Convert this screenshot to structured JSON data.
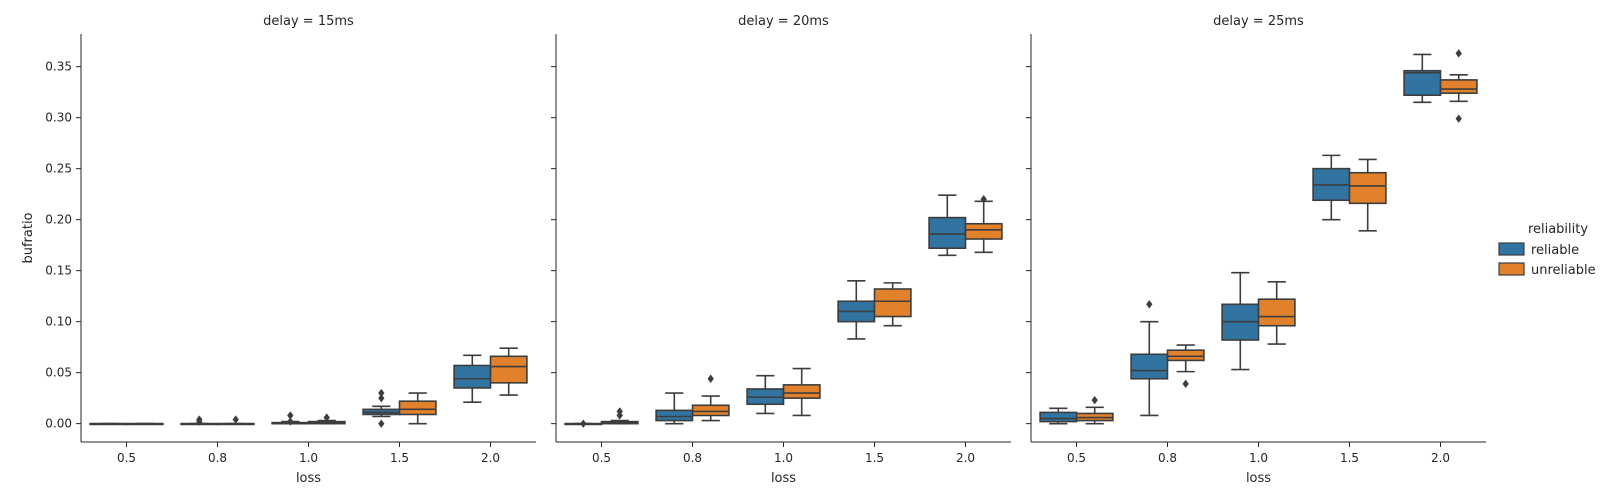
{
  "chart_data": {
    "type": "box",
    "colors": {
      "reliable": "#3274a1",
      "unreliable": "#e1812c",
      "line": "#3d3d3d"
    },
    "categories": [
      "0.5",
      "0.8",
      "1.0",
      "1.5",
      "2.0"
    ],
    "xlabel": "loss",
    "ylabel": "bufratio",
    "ylim": [
      -0.018,
      0.382
    ],
    "yticks": [
      "0.00",
      "0.05",
      "0.10",
      "0.15",
      "0.20",
      "0.25",
      "0.30",
      "0.35"
    ],
    "legend": {
      "title": "reliability",
      "position": "right",
      "entries": [
        "reliable",
        "unreliable"
      ]
    },
    "facets": [
      {
        "title": "delay = 15ms",
        "series": [
          {
            "name": "reliable",
            "boxes": [
              {
                "lo": 0.0,
                "q1": 0.0,
                "med": 0.0,
                "q3": 0.0,
                "hi": 0.0,
                "out": []
              },
              {
                "lo": 0.0,
                "q1": 0.0,
                "med": 0.0,
                "q3": 0.0,
                "hi": 0.0,
                "out": [
                  0.004,
                  0.002
                ]
              },
              {
                "lo": 0.0,
                "q1": 0.0,
                "med": 0.0,
                "q3": 0.001,
                "hi": 0.002,
                "out": [
                  0.008,
                  0.002
                ]
              },
              {
                "lo": 0.007,
                "q1": 0.009,
                "med": 0.011,
                "q3": 0.014,
                "hi": 0.017,
                "out": [
                  0.03,
                  0.025,
                  0.0
                ]
              },
              {
                "lo": 0.021,
                "q1": 0.035,
                "med": 0.044,
                "q3": 0.057,
                "hi": 0.067,
                "out": []
              }
            ]
          },
          {
            "name": "unreliable",
            "boxes": [
              {
                "lo": 0.0,
                "q1": 0.0,
                "med": 0.0,
                "q3": 0.0,
                "hi": 0.0,
                "out": []
              },
              {
                "lo": 0.0,
                "q1": 0.0,
                "med": 0.0,
                "q3": 0.0,
                "hi": 0.0,
                "out": [
                  0.004
                ]
              },
              {
                "lo": 0.0,
                "q1": 0.0,
                "med": 0.001,
                "q3": 0.002,
                "hi": 0.003,
                "out": [
                  0.006
                ]
              },
              {
                "lo": 0.0,
                "q1": 0.009,
                "med": 0.014,
                "q3": 0.022,
                "hi": 0.03,
                "out": []
              },
              {
                "lo": 0.028,
                "q1": 0.04,
                "med": 0.056,
                "q3": 0.066,
                "hi": 0.074,
                "out": []
              }
            ]
          }
        ]
      },
      {
        "title": "delay = 20ms",
        "series": [
          {
            "name": "reliable",
            "boxes": [
              {
                "lo": 0.0,
                "q1": 0.0,
                "med": 0.0,
                "q3": 0.0,
                "hi": 0.0,
                "out": [
                  0.0
                ]
              },
              {
                "lo": 0.0,
                "q1": 0.003,
                "med": 0.007,
                "q3": 0.013,
                "hi": 0.03,
                "out": []
              },
              {
                "lo": 0.01,
                "q1": 0.019,
                "med": 0.026,
                "q3": 0.034,
                "hi": 0.047,
                "out": []
              },
              {
                "lo": 0.083,
                "q1": 0.1,
                "med": 0.11,
                "q3": 0.12,
                "hi": 0.14,
                "out": []
              },
              {
                "lo": 0.165,
                "q1": 0.172,
                "med": 0.186,
                "q3": 0.202,
                "hi": 0.224,
                "out": []
              }
            ]
          },
          {
            "name": "unreliable",
            "boxes": [
              {
                "lo": 0.0,
                "q1": 0.0,
                "med": 0.001,
                "q3": 0.002,
                "hi": 0.003,
                "out": [
                  0.012,
                  0.008
                ]
              },
              {
                "lo": 0.003,
                "q1": 0.008,
                "med": 0.012,
                "q3": 0.018,
                "hi": 0.027,
                "out": [
                  0.044
                ]
              },
              {
                "lo": 0.008,
                "q1": 0.025,
                "med": 0.03,
                "q3": 0.038,
                "hi": 0.054,
                "out": []
              },
              {
                "lo": 0.096,
                "q1": 0.105,
                "med": 0.12,
                "q3": 0.132,
                "hi": 0.138,
                "out": []
              },
              {
                "lo": 0.168,
                "q1": 0.181,
                "med": 0.19,
                "q3": 0.196,
                "hi": 0.218,
                "out": [
                  0.22
                ]
              }
            ]
          }
        ]
      },
      {
        "title": "delay = 25ms",
        "series": [
          {
            "name": "reliable",
            "boxes": [
              {
                "lo": 0.0,
                "q1": 0.002,
                "med": 0.005,
                "q3": 0.011,
                "hi": 0.015,
                "out": []
              },
              {
                "lo": 0.008,
                "q1": 0.044,
                "med": 0.052,
                "q3": 0.068,
                "hi": 0.1,
                "out": [
                  0.117
                ]
              },
              {
                "lo": 0.053,
                "q1": 0.082,
                "med": 0.1,
                "q3": 0.117,
                "hi": 0.148,
                "out": []
              },
              {
                "lo": 0.2,
                "q1": 0.219,
                "med": 0.234,
                "q3": 0.25,
                "hi": 0.263,
                "out": []
              },
              {
                "lo": 0.315,
                "q1": 0.322,
                "med": 0.344,
                "q3": 0.346,
                "hi": 0.362,
                "out": []
              }
            ]
          },
          {
            "name": "unreliable",
            "boxes": [
              {
                "lo": 0.0,
                "q1": 0.003,
                "med": 0.006,
                "q3": 0.01,
                "hi": 0.016,
                "out": [
                  0.023
                ]
              },
              {
                "lo": 0.051,
                "q1": 0.062,
                "med": 0.066,
                "q3": 0.072,
                "hi": 0.077,
                "out": [
                  0.039
                ]
              },
              {
                "lo": 0.078,
                "q1": 0.096,
                "med": 0.105,
                "q3": 0.122,
                "hi": 0.139,
                "out": []
              },
              {
                "lo": 0.189,
                "q1": 0.216,
                "med": 0.233,
                "q3": 0.246,
                "hi": 0.259,
                "out": []
              },
              {
                "lo": 0.316,
                "q1": 0.324,
                "med": 0.328,
                "q3": 0.337,
                "hi": 0.342,
                "out": [
                  0.363,
                  0.299
                ]
              }
            ]
          }
        ]
      }
    ]
  }
}
